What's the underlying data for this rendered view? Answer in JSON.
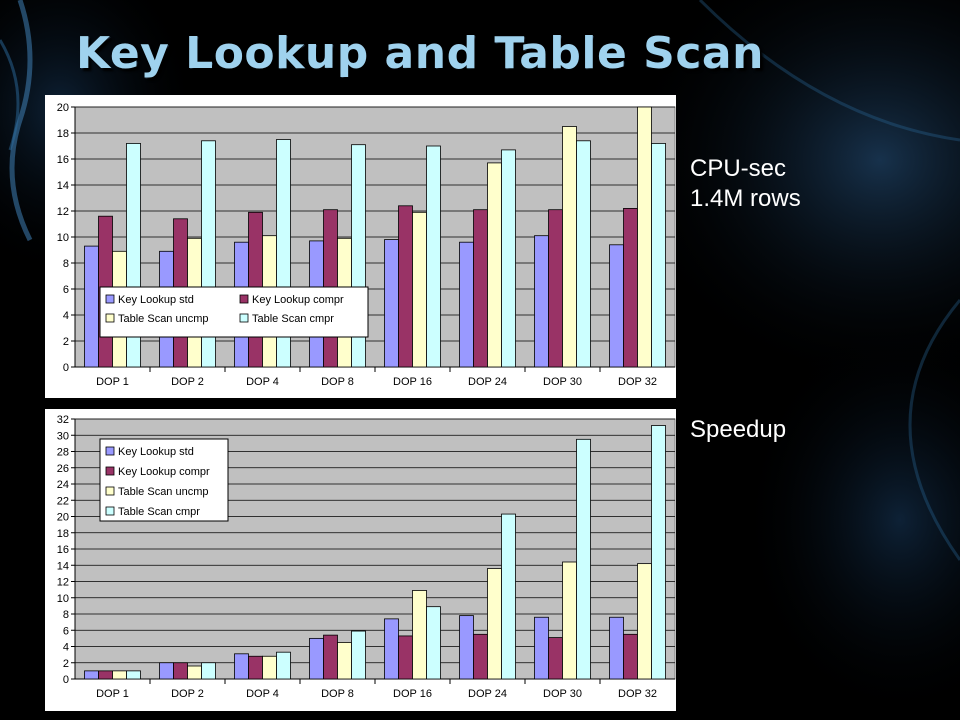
{
  "slide": {
    "title": "Key Lookup and Table Scan",
    "label_cpu_line1": "CPU-sec",
    "label_cpu_line2": "1.4M rows",
    "label_speedup": "Speedup"
  },
  "colors": {
    "background": "#000000",
    "title": "#9fd2ee",
    "plot_area": "#c0c0c0",
    "series": [
      "#9999ff",
      "#993366",
      "#ffffcc",
      "#ccffff"
    ]
  },
  "chart_data": [
    {
      "type": "bar",
      "categories": [
        "DOP 1",
        "DOP 2",
        "DOP 4",
        "DOP 8",
        "DOP 16",
        "DOP 24",
        "DOP 30",
        "DOP 32"
      ],
      "series": [
        {
          "name": "Key Lookup std",
          "values": [
            9.3,
            8.9,
            9.6,
            9.7,
            9.8,
            9.6,
            10.1,
            9.4
          ]
        },
        {
          "name": "Key Lookup compr",
          "values": [
            11.6,
            11.4,
            11.9,
            12.1,
            12.4,
            12.1,
            12.1,
            12.2
          ]
        },
        {
          "name": "Table Scan uncmp",
          "values": [
            8.9,
            9.9,
            10.1,
            9.9,
            11.9,
            15.7,
            18.5,
            20.0
          ]
        },
        {
          "name": "Table Scan cmpr",
          "values": [
            17.2,
            17.4,
            17.5,
            17.1,
            17.0,
            16.7,
            17.4,
            17.2
          ]
        }
      ],
      "ylim": [
        0,
        20
      ],
      "yticks": [
        "0",
        "2",
        "4",
        "6",
        "8",
        "10",
        "12",
        "14",
        "16",
        "18",
        "20"
      ],
      "grid": true,
      "legend": "bottom-left, two columns"
    },
    {
      "type": "bar",
      "categories": [
        "DOP 1",
        "DOP 2",
        "DOP 4",
        "DOP 8",
        "DOP 16",
        "DOP 24",
        "DOP 30",
        "DOP 32"
      ],
      "series": [
        {
          "name": "Key Lookup std",
          "values": [
            1.0,
            2.0,
            3.1,
            5.0,
            7.4,
            7.8,
            7.6,
            7.6
          ]
        },
        {
          "name": "Key Lookup compr",
          "values": [
            1.0,
            2.0,
            2.8,
            5.4,
            5.3,
            5.5,
            5.1,
            5.5
          ]
        },
        {
          "name": "Table Scan uncmp",
          "values": [
            1.0,
            1.6,
            2.8,
            4.5,
            10.9,
            13.6,
            14.4,
            14.2
          ]
        },
        {
          "name": "Table Scan cmpr",
          "values": [
            1.0,
            2.0,
            3.3,
            5.9,
            8.9,
            20.3,
            29.5,
            31.2
          ]
        }
      ],
      "ylim": [
        0,
        32
      ],
      "yticks": [
        "0",
        "2",
        "4",
        "6",
        "8",
        "10",
        "12",
        "14",
        "16",
        "18",
        "20",
        "22",
        "24",
        "26",
        "28",
        "30",
        "32"
      ],
      "grid": true,
      "legend": "top-left, one column"
    }
  ]
}
